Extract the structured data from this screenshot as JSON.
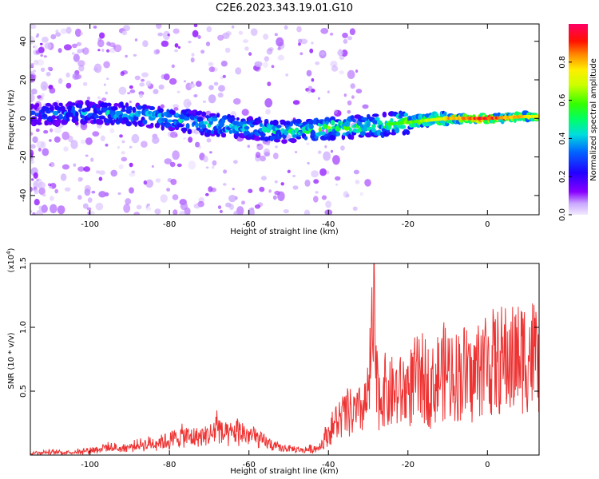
{
  "title": "C2E6.2023.343.19.01.G10",
  "colors": {
    "snr_line": "#ee3333",
    "axis": "#000000",
    "background": "#ffffff"
  },
  "chart_data": [
    {
      "type": "heatmap",
      "xlabel": "Height of straight line (km)",
      "ylabel": "Frequency (Hz)",
      "xlim": [
        -115,
        13
      ],
      "ylim": [
        -50,
        49
      ],
      "x_ticks": [
        -100,
        -80,
        -60,
        -40,
        -20,
        0
      ],
      "y_ticks": [
        -40,
        -20,
        0,
        20,
        40
      ],
      "colorbar": {
        "label": "Normalized spectral amplitude",
        "range": [
          0.0,
          1.0
        ],
        "ticks": [
          0.0,
          0.2,
          0.4,
          0.6,
          0.8
        ],
        "colormap": "rainbow (white-purple-blue-cyan-green-yellow-red-magenta)"
      },
      "ridge": [
        {
          "x": -115,
          "freq": 2,
          "amp": 0.3
        },
        {
          "x": -100,
          "freq": 3,
          "amp": 0.4
        },
        {
          "x": -90,
          "freq": 2,
          "amp": 0.45
        },
        {
          "x": -80,
          "freq": 0,
          "amp": 0.45
        },
        {
          "x": -70,
          "freq": -3,
          "amp": 0.5
        },
        {
          "x": -60,
          "freq": -5,
          "amp": 0.45
        },
        {
          "x": -50,
          "freq": -7,
          "amp": 0.5
        },
        {
          "x": -40,
          "freq": -5,
          "amp": 0.6
        },
        {
          "x": -30,
          "freq": -4,
          "amp": 0.55
        },
        {
          "x": -20,
          "freq": -2,
          "amp": 0.65
        },
        {
          "x": -10,
          "freq": 0,
          "amp": 0.85
        },
        {
          "x": 0,
          "freq": 0,
          "amp": 1.0
        },
        {
          "x": 10,
          "freq": 1,
          "amp": 0.8
        }
      ]
    },
    {
      "type": "line",
      "xlabel": "Height of straight line (km)",
      "ylabel": "SNR (10 * v/v)",
      "scale_label": "(x10",
      "scale_exp": "4",
      "scale_close": ")",
      "xlim": [
        -115,
        13
      ],
      "ylim": [
        0.0,
        1.5
      ],
      "x_ticks": [
        -100,
        -80,
        -60,
        -40,
        -20,
        0
      ],
      "y_ticks": [
        0.5,
        1.0,
        1.5
      ],
      "series": [
        {
          "color": "#ee3333",
          "x": [
            -115,
            -110,
            -105,
            -100,
            -96,
            -92,
            -88,
            -85,
            -82,
            -80,
            -77,
            -74,
            -71,
            -69,
            -68,
            -67,
            -65,
            -63,
            -61,
            -59,
            -57,
            -55,
            -53,
            -51,
            -49,
            -47,
            -45,
            -43,
            -42,
            -41,
            -40,
            -39,
            -37,
            -35,
            -33,
            -31,
            -30,
            -29,
            -28.5,
            -28,
            -27,
            -26,
            -25,
            -24,
            -22,
            -20,
            -18,
            -16,
            -14,
            -12,
            -10,
            -8,
            -6,
            -4,
            -2,
            0,
            2,
            4,
            6,
            8,
            10,
            12,
            13
          ],
          "y": [
            0.02,
            0.03,
            0.03,
            0.05,
            0.08,
            0.07,
            0.1,
            0.12,
            0.14,
            0.15,
            0.2,
            0.18,
            0.2,
            0.22,
            0.35,
            0.22,
            0.2,
            0.25,
            0.22,
            0.2,
            0.15,
            0.12,
            0.08,
            0.07,
            0.06,
            0.05,
            0.06,
            0.07,
            0.1,
            0.18,
            0.22,
            0.3,
            0.38,
            0.45,
            0.42,
            0.5,
            0.6,
            1.2,
            1.4,
            0.75,
            0.58,
            0.7,
            0.6,
            0.65,
            0.65,
            0.7,
            0.78,
            0.8,
            0.7,
            0.85,
            0.88,
            0.82,
            0.88,
            0.76,
            0.95,
            0.98,
            0.95,
            1.0,
            0.98,
            1.02,
            1.06,
            1.04,
            0.92
          ]
        }
      ]
    }
  ]
}
